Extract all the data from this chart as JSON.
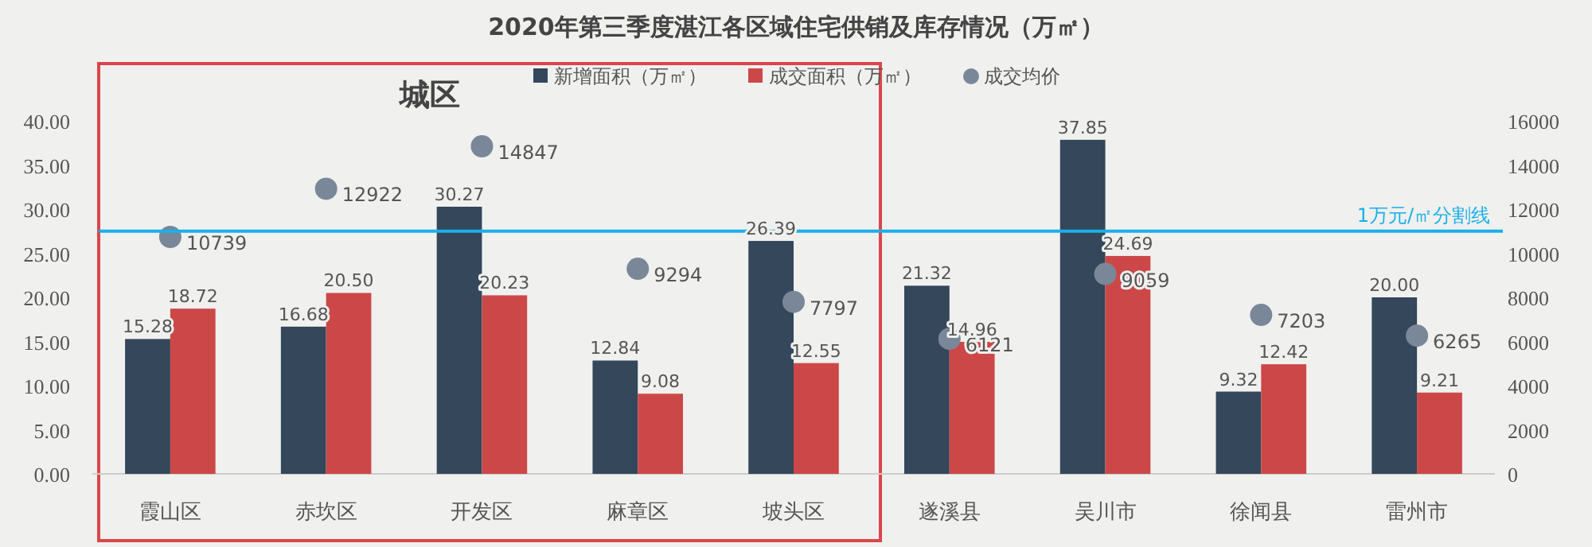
{
  "chart_data": {
    "type": "bar",
    "title": "2020年第三季度湛江各区域住宅供销及库存情况（万㎡）",
    "categories": [
      "霞山区",
      "赤坎区",
      "开发区",
      "麻章区",
      "坡头区",
      "遂溪县",
      "吴川市",
      "徐闻县",
      "雷州市"
    ],
    "series": [
      {
        "name": "新增面积（万㎡）",
        "color": "#34475b",
        "values": [
          15.28,
          16.68,
          30.27,
          12.84,
          26.39,
          21.32,
          37.85,
          9.32,
          20.0
        ],
        "value_labels": [
          "15.28",
          "16.68",
          "30.27",
          "12.84",
          "26.39",
          "21.32",
          "37.85",
          "9.32",
          "20.00"
        ]
      },
      {
        "name": "成交面积（万㎡）",
        "color": "#cc4848",
        "values": [
          18.72,
          20.5,
          20.23,
          9.08,
          12.55,
          14.96,
          24.69,
          12.42,
          9.21
        ],
        "value_labels": [
          "18.72",
          "20.50",
          "20.23",
          "9.08",
          "12.55",
          "14.96",
          "24.69",
          "12.42",
          "9.21"
        ]
      },
      {
        "name": "成交均价",
        "type": "scatter",
        "axis": "y2",
        "color": "#7a8799",
        "x": [
          "霞山区",
          "赤坎区",
          "开发区",
          "麻章区",
          "坡头区",
          "遂溪县",
          "吴川市",
          "徐闻县",
          "雷州市"
        ],
        "values": [
          10739,
          12922,
          14847,
          9294,
          7797,
          6121,
          9059,
          7203,
          6265
        ],
        "value_labels": [
          "10739",
          "12922",
          "14847",
          "9294",
          "7797",
          "6121",
          "9059",
          "7203",
          "6265"
        ]
      }
    ],
    "ylim": [
      0,
      40
    ],
    "yticks": [
      {
        "value": 0,
        "label": "0.00"
      },
      {
        "value": 5,
        "label": "5.00"
      },
      {
        "value": 10,
        "label": "10.00"
      },
      {
        "value": 15,
        "label": "15.00"
      },
      {
        "value": 20,
        "label": "20.00"
      },
      {
        "value": 25,
        "label": "25.00"
      },
      {
        "value": 30,
        "label": "30.00"
      },
      {
        "value": 35,
        "label": "35.00"
      },
      {
        "value": 40,
        "label": "40.00"
      }
    ],
    "y2lim": [
      0,
      16000
    ],
    "y2ticks": [
      0,
      2000,
      4000,
      6000,
      8000,
      10000,
      12000,
      14000,
      16000
    ],
    "ref_lines": [
      {
        "axis": "y2",
        "value": 11000,
        "label": "1万元/㎡分割线",
        "color": "#1ab0e8"
      }
    ],
    "annotations": [
      "城区"
    ],
    "legend": "top",
    "grid": false,
    "marker": "circle"
  }
}
